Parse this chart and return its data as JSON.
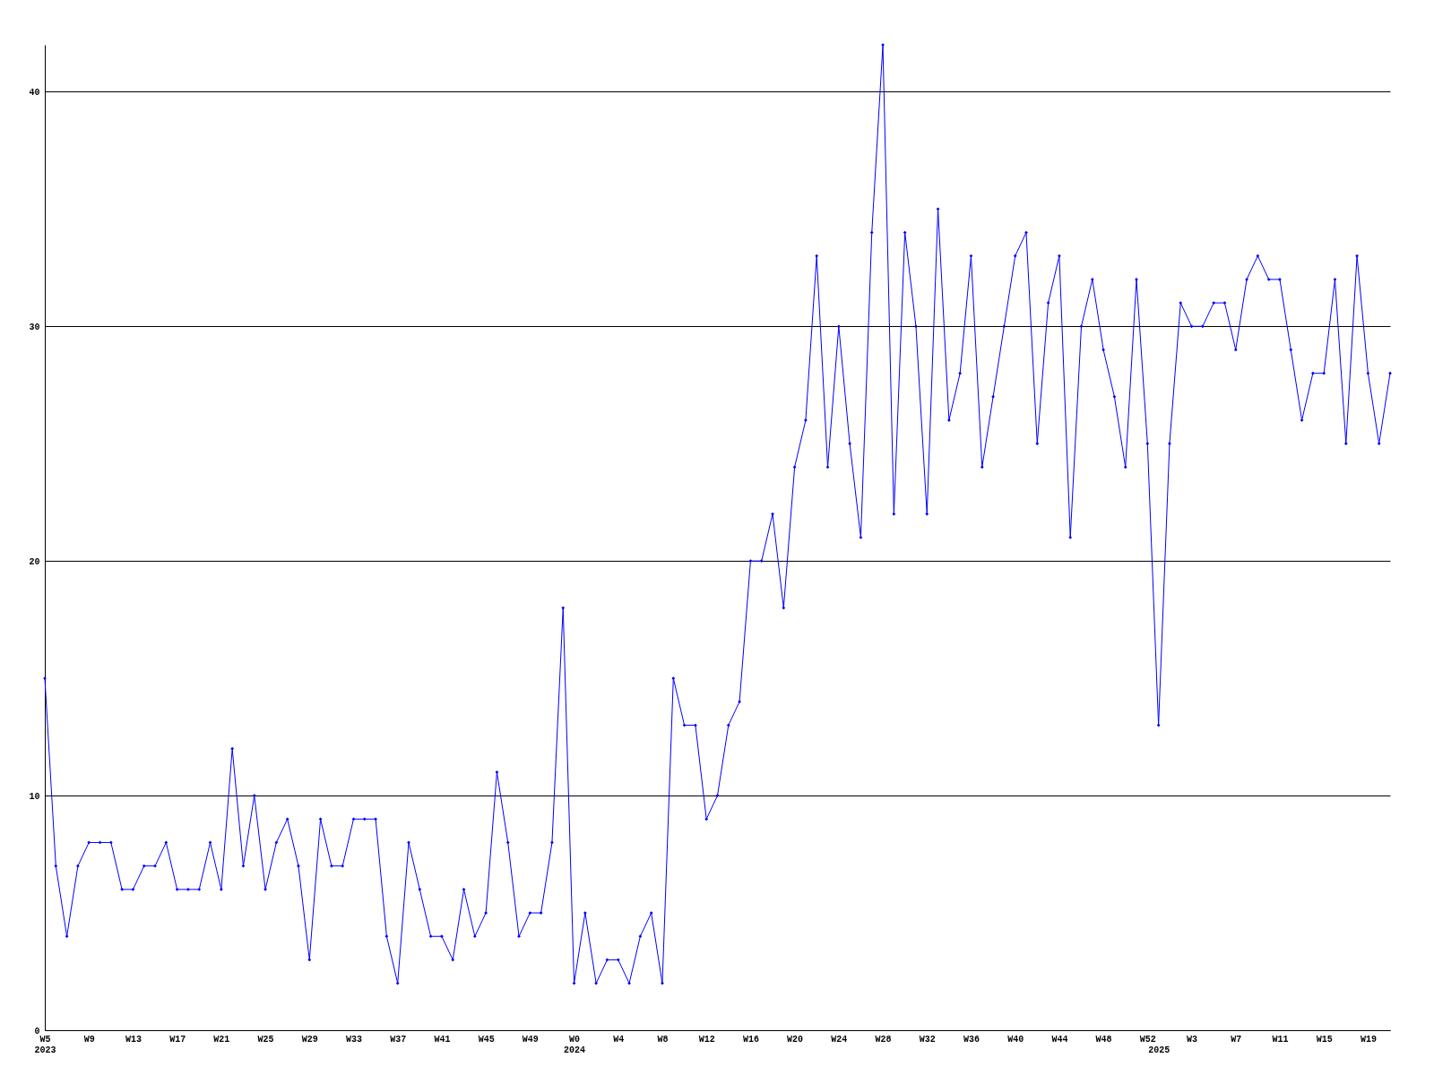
{
  "chart_data": {
    "type": "line",
    "categories": [
      "W5\n2023",
      null,
      null,
      null,
      "W9",
      null,
      null,
      null,
      "W13",
      null,
      null,
      null,
      "W17",
      null,
      null,
      null,
      "W21",
      null,
      null,
      null,
      "W25",
      null,
      null,
      null,
      "W29",
      null,
      null,
      null,
      "W33",
      null,
      null,
      null,
      "W37",
      null,
      null,
      null,
      "W41",
      null,
      null,
      null,
      "W45",
      null,
      null,
      null,
      "W49",
      null,
      null,
      null,
      "W0\n2024",
      null,
      null,
      null,
      "W4",
      null,
      null,
      null,
      "W8",
      null,
      null,
      null,
      "W12",
      null,
      null,
      null,
      "W16",
      null,
      null,
      null,
      "W20",
      null,
      null,
      null,
      "W24",
      null,
      null,
      null,
      "W28",
      null,
      null,
      null,
      "W32",
      null,
      null,
      null,
      "W36",
      null,
      null,
      null,
      "W40",
      null,
      null,
      null,
      "W44",
      null,
      null,
      null,
      "W48",
      null,
      null,
      null,
      "W52",
      "\n2025",
      null,
      null,
      "W3",
      null,
      null,
      null,
      "W7",
      null,
      null,
      null,
      "W11",
      null,
      null,
      null,
      "W15",
      null,
      null,
      null,
      "W19",
      null,
      null
    ],
    "series": [
      {
        "color": "#0000ff",
        "values": [
          15,
          7,
          4,
          7,
          8,
          8,
          8,
          6,
          6,
          7,
          7,
          8,
          6,
          6,
          6,
          8,
          6,
          12,
          7,
          10,
          6,
          8,
          9,
          7,
          3,
          9,
          7,
          7,
          9,
          9,
          9,
          4,
          2,
          8,
          6,
          4,
          4,
          3,
          6,
          4,
          5,
          11,
          8,
          4,
          5,
          5,
          8,
          18,
          2,
          5,
          2,
          3,
          3,
          2,
          4,
          5,
          2,
          15,
          13,
          13,
          9,
          10,
          13,
          14,
          20,
          20,
          22,
          18,
          24,
          26,
          33,
          24,
          30,
          25,
          21,
          34,
          42,
          22,
          34,
          30,
          22,
          35,
          26,
          28,
          33,
          24,
          27,
          30,
          33,
          34,
          25,
          31,
          33,
          21,
          30,
          32,
          29,
          27,
          24,
          32,
          25,
          13,
          25,
          31,
          30,
          30,
          31,
          31,
          29,
          32,
          33,
          32,
          32,
          29,
          26,
          28,
          28,
          32,
          25,
          33,
          28,
          25,
          28
        ]
      }
    ],
    "ylim": [
      0,
      42
    ],
    "yticks": [
      0,
      10,
      20,
      30,
      40
    ],
    "grid": "y",
    "marker": "diamond",
    "line_style": "solid"
  }
}
